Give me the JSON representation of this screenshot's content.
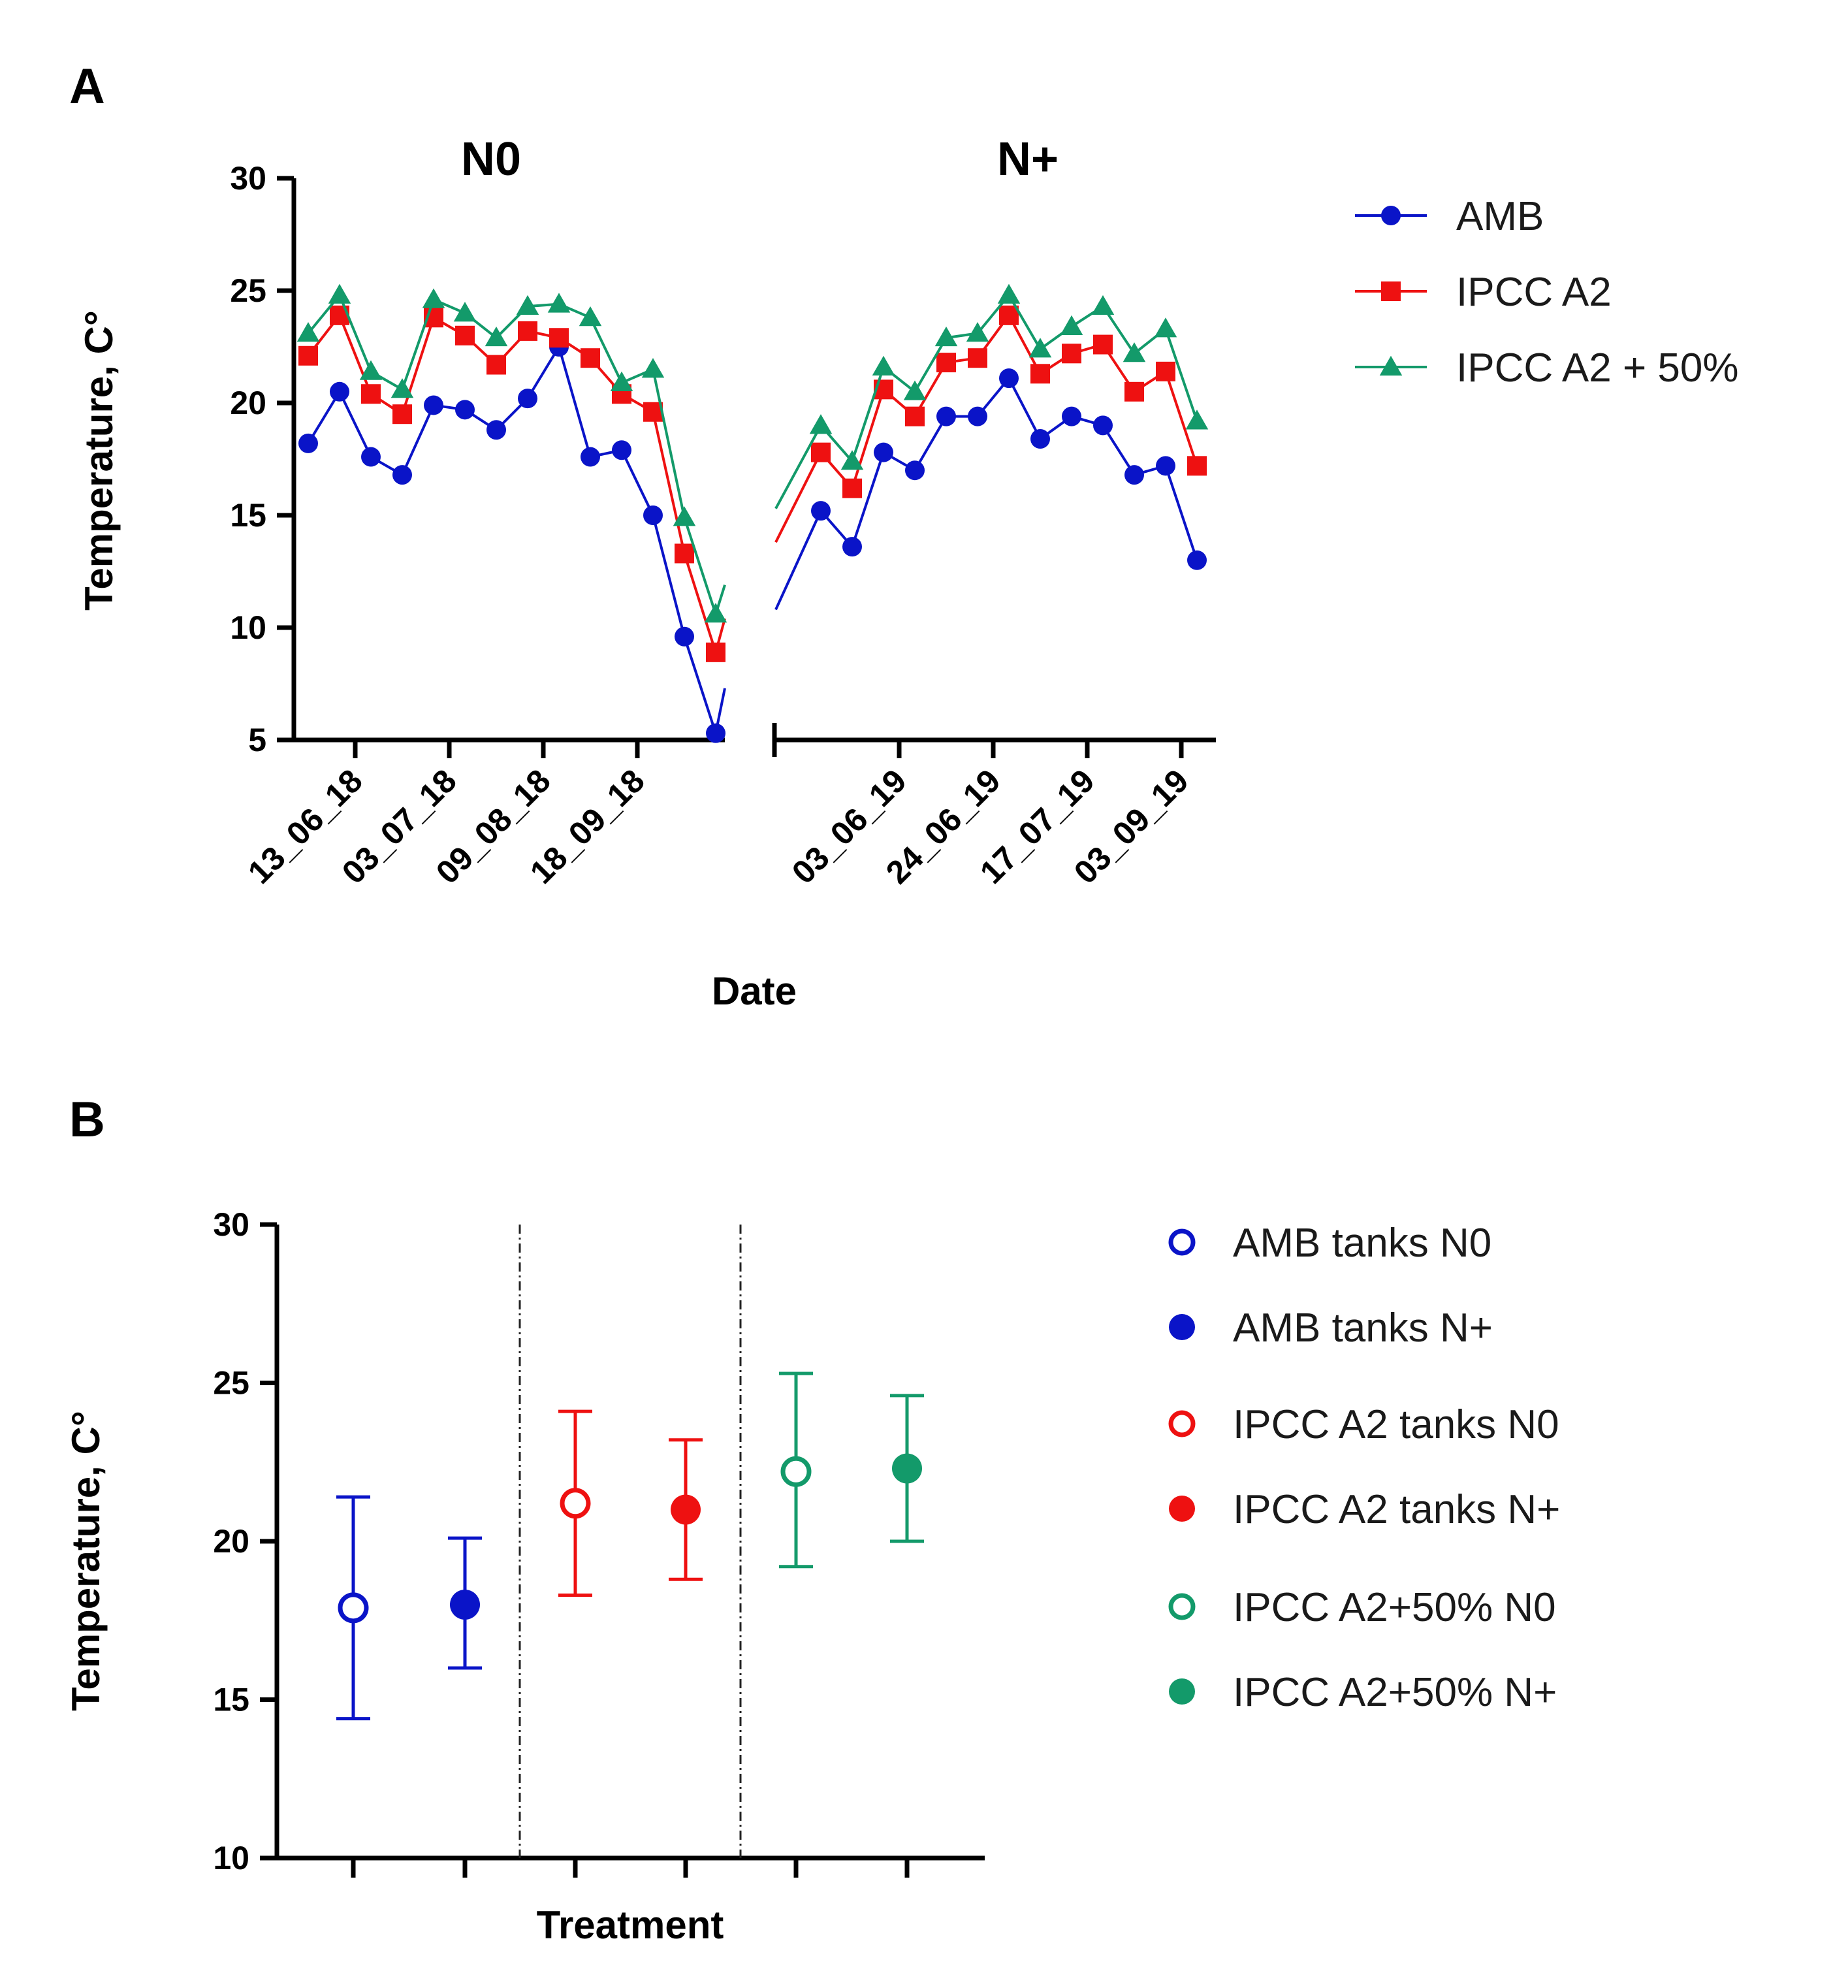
{
  "chart_data": [
    {
      "panel": "A",
      "type": "line",
      "title": "",
      "xlabel": "Date",
      "ylabel": "Temperature, C°",
      "ylim": [
        5,
        30
      ],
      "yticks": [
        5,
        10,
        15,
        20,
        25,
        30
      ],
      "grid": false,
      "legend_position": "right",
      "facets": [
        {
          "title": "N0",
          "tick_labels": [
            "13_06_18",
            "03_07_18",
            "09_08_18",
            "18_09_18"
          ],
          "tick_after_points": [
            2,
            5,
            8,
            11
          ],
          "series": [
            {
              "name": "AMB",
              "color": "#0a14c8",
              "marker": "circle",
              "values": [
                18.2,
                20.5,
                17.6,
                16.8,
                19.9,
                19.7,
                18.8,
                20.2,
                22.5,
                17.6,
                17.9,
                15.0,
                9.6,
                5.3
              ],
              "continues_to": 7.3
            },
            {
              "name": "IPCC A2",
              "color": "#ee1111",
              "marker": "square",
              "values": [
                22.1,
                23.9,
                20.4,
                19.5,
                23.8,
                23.0,
                21.7,
                23.2,
                22.9,
                22.0,
                20.4,
                19.6,
                13.3,
                8.9
              ],
              "continues_to": 10.4
            },
            {
              "name": "IPCC A2 + 50%",
              "color": "#139a6a",
              "marker": "triangle",
              "values": [
                23.1,
                24.8,
                21.4,
                20.6,
                24.6,
                24.0,
                22.9,
                24.3,
                24.4,
                23.8,
                20.9,
                21.5,
                14.9,
                10.6
              ],
              "continues_to": 11.9
            }
          ]
        },
        {
          "title": "N+",
          "tick_labels": [
            "03_06_19",
            "24_06_19",
            "17_07_19",
            "03_09_19"
          ],
          "tick_after_points": [
            3,
            6,
            9,
            12
          ],
          "series": [
            {
              "name": "AMB",
              "color": "#0a14c8",
              "marker": "circle",
              "starts_from": 10.8,
              "values": [
                15.2,
                13.6,
                17.8,
                17.0,
                19.4,
                19.4,
                21.1,
                18.4,
                19.4,
                19.0,
                16.8,
                17.2,
                13.0
              ]
            },
            {
              "name": "IPCC A2",
              "color": "#ee1111",
              "marker": "square",
              "starts_from": 13.8,
              "values": [
                17.8,
                16.2,
                20.6,
                19.4,
                21.8,
                22.0,
                23.9,
                21.3,
                22.2,
                22.6,
                20.5,
                21.4,
                17.2
              ]
            },
            {
              "name": "IPCC A2 + 50%",
              "color": "#139a6a",
              "marker": "triangle",
              "starts_from": 15.3,
              "values": [
                19.0,
                17.4,
                21.6,
                20.5,
                22.9,
                23.1,
                24.8,
                22.4,
                23.4,
                24.3,
                22.2,
                23.3,
                19.2
              ]
            }
          ]
        }
      ]
    },
    {
      "panel": "B",
      "type": "scatter",
      "title": "",
      "xlabel": "Treatment",
      "ylabel": "Temperature, C°",
      "ylim": [
        10,
        30
      ],
      "yticks": [
        10,
        15,
        20,
        25,
        30
      ],
      "grid": false,
      "legend_position": "right",
      "points": [
        {
          "name": "AMB tanks N0",
          "color": "#0a14c8",
          "filled": false,
          "mean": 17.9,
          "low": 14.4,
          "high": 21.4
        },
        {
          "name": "AMB tanks N+",
          "color": "#0a14c8",
          "filled": true,
          "mean": 18.0,
          "low": 16.0,
          "high": 20.1
        },
        {
          "name": "IPCC A2 tanks N0",
          "color": "#ee1111",
          "filled": false,
          "mean": 21.2,
          "low": 18.3,
          "high": 24.1
        },
        {
          "name": "IPCC A2 tanks N+",
          "color": "#ee1111",
          "filled": true,
          "mean": 21.0,
          "low": 18.8,
          "high": 23.2
        },
        {
          "name": "IPCC A2+50% N0",
          "color": "#139a6a",
          "filled": false,
          "mean": 22.2,
          "low": 19.2,
          "high": 25.3
        },
        {
          "name": "IPCC A2+50% N+",
          "color": "#139a6a",
          "filled": true,
          "mean": 22.3,
          "low": 20.0,
          "high": 24.6
        }
      ]
    }
  ]
}
